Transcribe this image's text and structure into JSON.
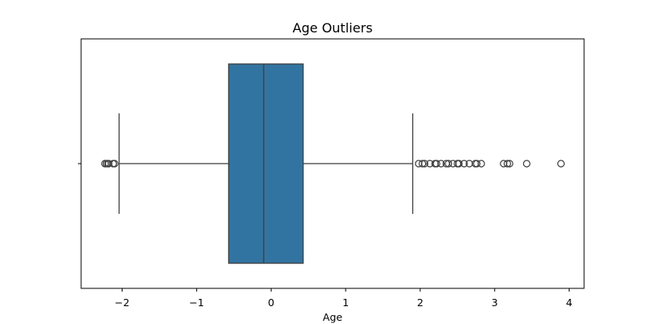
{
  "chart_data": {
    "type": "box",
    "title": "Age Outliers",
    "xlabel": "Age",
    "ylabel": "",
    "xlim": [
      -2.55,
      4.2
    ],
    "x_ticks": [
      -2,
      -1,
      0,
      1,
      2,
      3,
      4
    ],
    "x_tick_labels": [
      "−2",
      "−1",
      "0",
      "1",
      "2",
      "3",
      "4"
    ],
    "box": {
      "q1": -0.57,
      "median": -0.1,
      "q3": 0.43,
      "whisker_low": -2.04,
      "whisker_high": 1.9,
      "fill_color": "#3274a1",
      "line_color": "#3f3f3f"
    },
    "outliers": [
      -2.23,
      -2.21,
      -2.19,
      -2.18,
      -2.12,
      -2.1,
      1.98,
      2.03,
      2.06,
      2.13,
      2.2,
      2.22,
      2.28,
      2.35,
      2.38,
      2.44,
      2.5,
      2.52,
      2.59,
      2.66,
      2.74,
      2.76,
      2.82,
      3.12,
      3.17,
      3.2,
      3.43,
      3.89
    ],
    "grid": false,
    "legend": "none"
  }
}
